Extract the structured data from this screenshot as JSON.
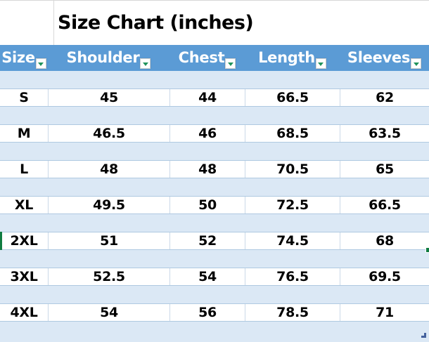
{
  "title": "Size Chart (inches)",
  "table": {
    "columns": [
      "Size",
      "Shoulder",
      "Chest",
      "Length",
      "Sleeves"
    ],
    "rows": [
      {
        "cells": [
          "S",
          "45",
          "44",
          "66.5",
          "62"
        ]
      },
      {
        "cells": [
          "M",
          "46.5",
          "46",
          "68.5",
          "63.5"
        ]
      },
      {
        "cells": [
          "L",
          "48",
          "48",
          "70.5",
          "65"
        ]
      },
      {
        "cells": [
          "XL",
          "49.5",
          "50",
          "72.5",
          "66.5"
        ]
      },
      {
        "cells": [
          "2XL",
          "51",
          "52",
          "74.5",
          "68"
        ]
      },
      {
        "cells": [
          "3XL",
          "52.5",
          "54",
          "76.5",
          "69.5"
        ]
      },
      {
        "cells": [
          "4XL",
          "54",
          "56",
          "78.5",
          "71"
        ]
      }
    ]
  },
  "selection": {
    "selected_row": "2XL"
  },
  "icons": {
    "filter_dropdown": "filter-dropdown-icon",
    "resize_corner": "table-resize-handle"
  },
  "colors": {
    "header_bg": "#5B9BD5",
    "header_text": "#FFFFFF",
    "band_bg": "#DBE8F5",
    "row_bg": "#FFFFFF",
    "grid_line": "#AFC9E1",
    "selection_green": "#107C41",
    "filter_arrow_green": "#21935C",
    "resize_handle_blue": "#44619D",
    "title_text": "#000000"
  }
}
